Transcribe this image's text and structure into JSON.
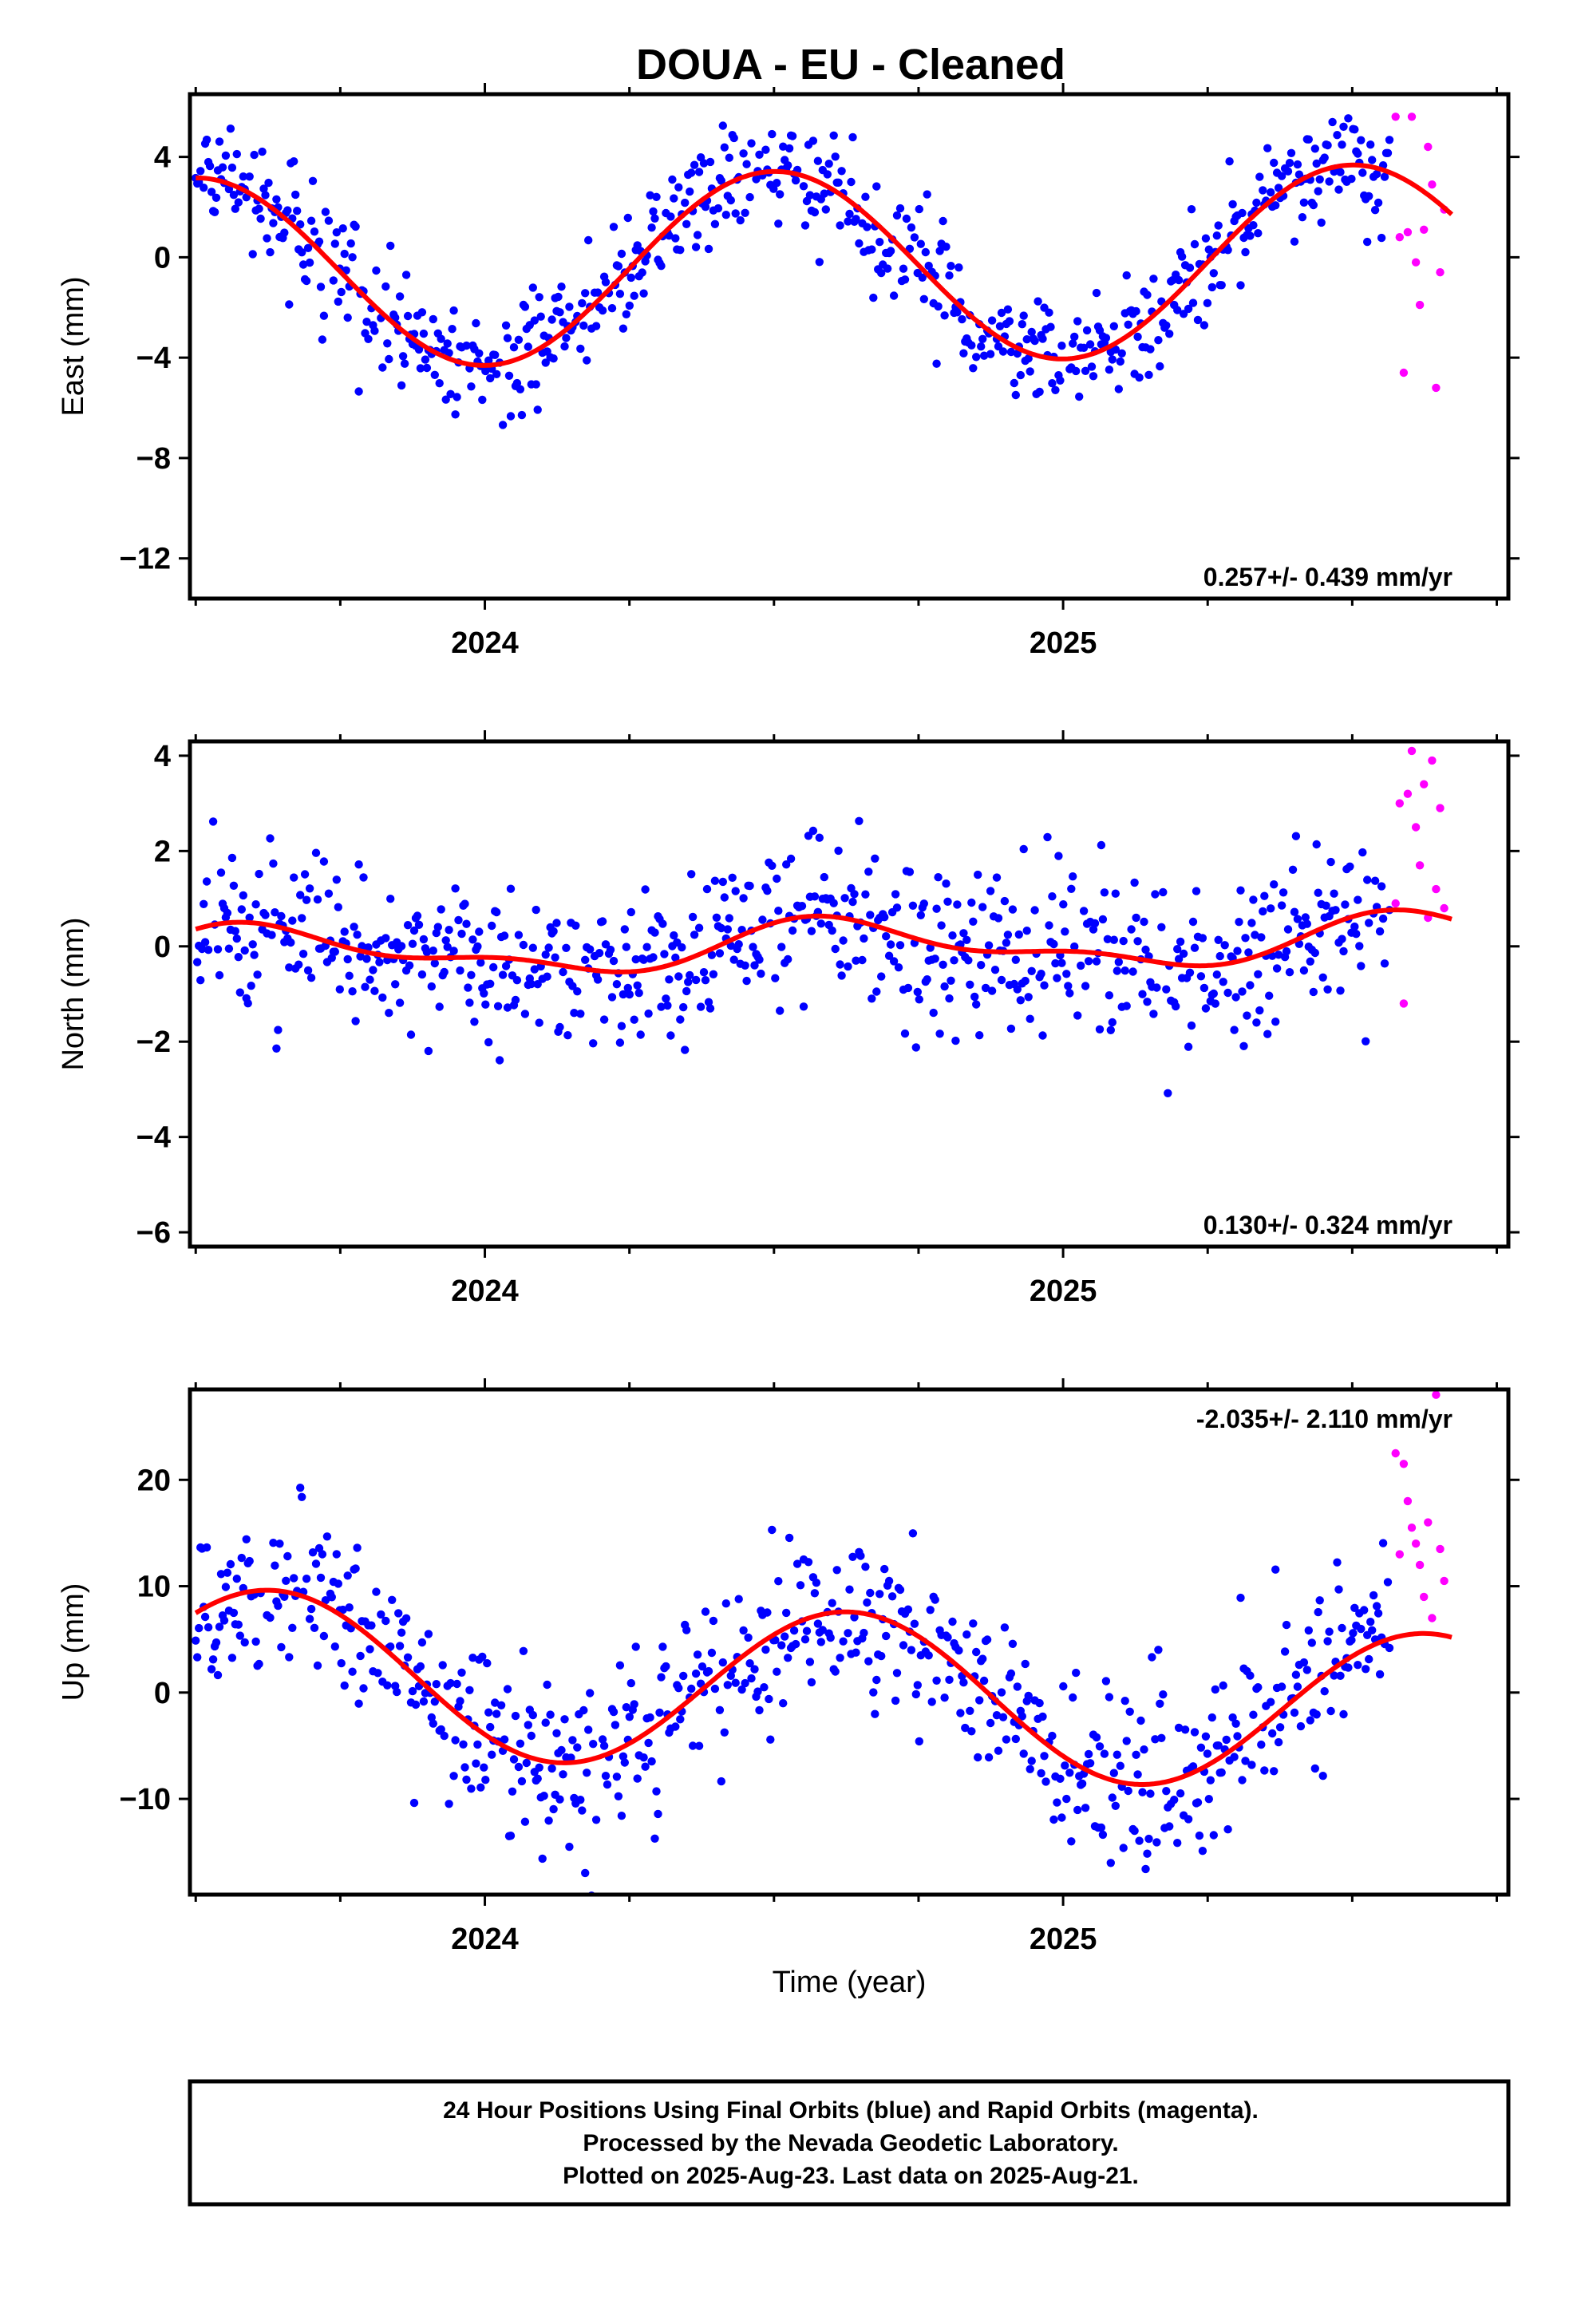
{
  "title": "DOUA  - EU - Cleaned",
  "chart_data": [
    {
      "type": "scatter",
      "component": "east",
      "ylabel": "East (mm)",
      "xlabel": "",
      "xlim": [
        2023.49,
        2025.77
      ],
      "ylim": [
        -13.6,
        6.5
      ],
      "yticks": [
        4,
        0,
        -4,
        -8,
        -12
      ],
      "ytick_labels": [
        "4",
        "0",
        "−4",
        "−8",
        "−12"
      ],
      "xticks": [
        2024,
        2025
      ],
      "xtick_labels": [
        "2024",
        "2025"
      ],
      "xminor": [
        2023.5,
        2023.75,
        2024.25,
        2024.5,
        2024.75,
        2025.25,
        2025.5,
        2025.75
      ],
      "rate_text": "0.257+/- 0.439 mm/yr",
      "rate_position": "bottom-right",
      "model": {
        "mean": -0.35,
        "trend": 0.257,
        "t0": 2024.62,
        "a1": 3.8,
        "p1": 2024.5,
        "a2": 0.0,
        "p2": 2024.5
      },
      "rapid_points": [
        [
          2025.575,
          5.6
        ],
        [
          2025.582,
          0.8
        ],
        [
          2025.589,
          -4.6
        ],
        [
          2025.596,
          1.0
        ],
        [
          2025.603,
          5.6
        ],
        [
          2025.61,
          -0.2
        ],
        [
          2025.617,
          -1.9
        ],
        [
          2025.624,
          1.1
        ],
        [
          2025.631,
          4.4
        ],
        [
          2025.638,
          2.9
        ],
        [
          2025.645,
          -5.2
        ],
        [
          2025.652,
          -0.6
        ],
        [
          2025.659,
          1.9
        ]
      ]
    },
    {
      "type": "scatter",
      "component": "north",
      "ylabel": "North (mm)",
      "xlabel": "",
      "xlim": [
        2023.49,
        2025.77
      ],
      "ylim": [
        -6.3,
        4.3
      ],
      "yticks": [
        4,
        2,
        0,
        -2,
        -4,
        -6
      ],
      "ytick_labels": [
        "4",
        "2",
        "0",
        "−2",
        "−4",
        "−6"
      ],
      "xticks": [
        2024,
        2025
      ],
      "xtick_labels": [
        "2024",
        "2025"
      ],
      "xminor": [
        2023.5,
        2023.75,
        2024.25,
        2024.5,
        2024.75,
        2025.25,
        2025.5,
        2025.75
      ],
      "rate_text": "0.130+/- 0.324 mm/yr",
      "rate_position": "bottom-right",
      "model": {
        "mean": 0.0,
        "trend": 0.13,
        "t0": 2024.62,
        "a1": 0.45,
        "p1": 2024.62,
        "a2": 0.22,
        "p2": 2024.55
      },
      "rapid_points": [
        [
          2025.575,
          0.9
        ],
        [
          2025.582,
          3.0
        ],
        [
          2025.589,
          -1.2
        ],
        [
          2025.596,
          3.2
        ],
        [
          2025.603,
          4.1
        ],
        [
          2025.61,
          2.5
        ],
        [
          2025.617,
          1.7
        ],
        [
          2025.624,
          3.4
        ],
        [
          2025.631,
          0.6
        ],
        [
          2025.638,
          3.9
        ],
        [
          2025.645,
          1.2
        ],
        [
          2025.652,
          2.9
        ],
        [
          2025.659,
          0.8
        ]
      ]
    },
    {
      "type": "scatter",
      "component": "up",
      "ylabel": "Up (mm)",
      "xlabel": "Time (year)",
      "xlim": [
        2023.49,
        2025.77
      ],
      "ylim": [
        -19.0,
        28.5
      ],
      "yticks": [
        20,
        10,
        0,
        -10
      ],
      "ytick_labels": [
        "20",
        "10",
        "0",
        "−10"
      ],
      "xticks": [
        2024,
        2025
      ],
      "xtick_labels": [
        "2024",
        "2025"
      ],
      "xminor": [
        2023.5,
        2023.75,
        2024.25,
        2024.5,
        2024.75,
        2025.25,
        2025.5,
        2025.75
      ],
      "rate_text": "-2.035+/- 2.110 mm/yr",
      "rate_position": "top-right",
      "model": {
        "mean": 0.0,
        "trend": -2.035,
        "t0": 2024.62,
        "a1": 7.6,
        "p1": 2024.63,
        "a2": 0.0,
        "p2": 2024.5
      },
      "rapid_points": [
        [
          2025.575,
          22.5
        ],
        [
          2025.582,
          13.0
        ],
        [
          2025.589,
          21.5
        ],
        [
          2025.596,
          18.0
        ],
        [
          2025.603,
          15.5
        ],
        [
          2025.61,
          14.0
        ],
        [
          2025.617,
          12.0
        ],
        [
          2025.624,
          9.0
        ],
        [
          2025.631,
          16.0
        ],
        [
          2025.638,
          7.0
        ],
        [
          2025.645,
          28.0
        ],
        [
          2025.652,
          13.5
        ],
        [
          2025.659,
          10.5
        ]
      ]
    }
  ],
  "footer": {
    "line1": "24 Hour Positions Using Final Orbits (blue) and Rapid Orbits (magenta).",
    "line2": "Processed by the Nevada Geodetic Laboratory.",
    "line3": "Plotted on 2025-Aug-23. Last data on 2025-Aug-21."
  },
  "colors": {
    "final_orbits": "#0000ff",
    "rapid_orbits": "#ff00ff",
    "model_curve": "#ff0000",
    "frame": "#000000"
  }
}
